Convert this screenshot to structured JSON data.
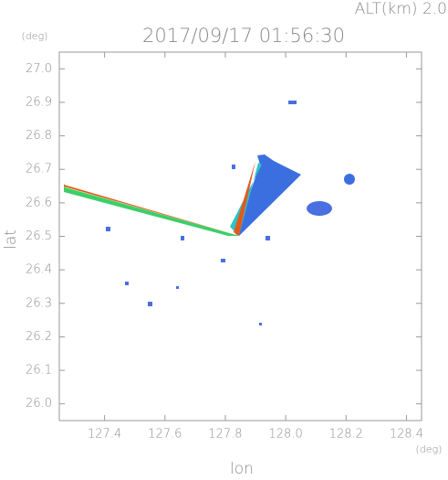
{
  "chart_data": {
    "type": "scatter",
    "title": "2017/09/17 01:56:30",
    "subtitle": "ALT(km)  2.0",
    "y_unit": "(deg)",
    "x_unit": "(deg)",
    "xlabel": "lon",
    "ylabel": "lat",
    "xlim": [
      127.25,
      128.45
    ],
    "ylim": [
      25.95,
      27.05
    ],
    "xticks": [
      127.4,
      127.6,
      127.8,
      {
        "value": 128.0,
        "label": "128.0"
      },
      128.2,
      128.4
    ],
    "yticks": [
      {
        "value": 26.0,
        "label": "26.0"
      },
      26.1,
      26.2,
      26.3,
      26.4,
      26.5,
      26.6,
      26.7,
      26.8,
      26.9,
      {
        "value": 27.0,
        "label": "27.0"
      }
    ]
  }
}
